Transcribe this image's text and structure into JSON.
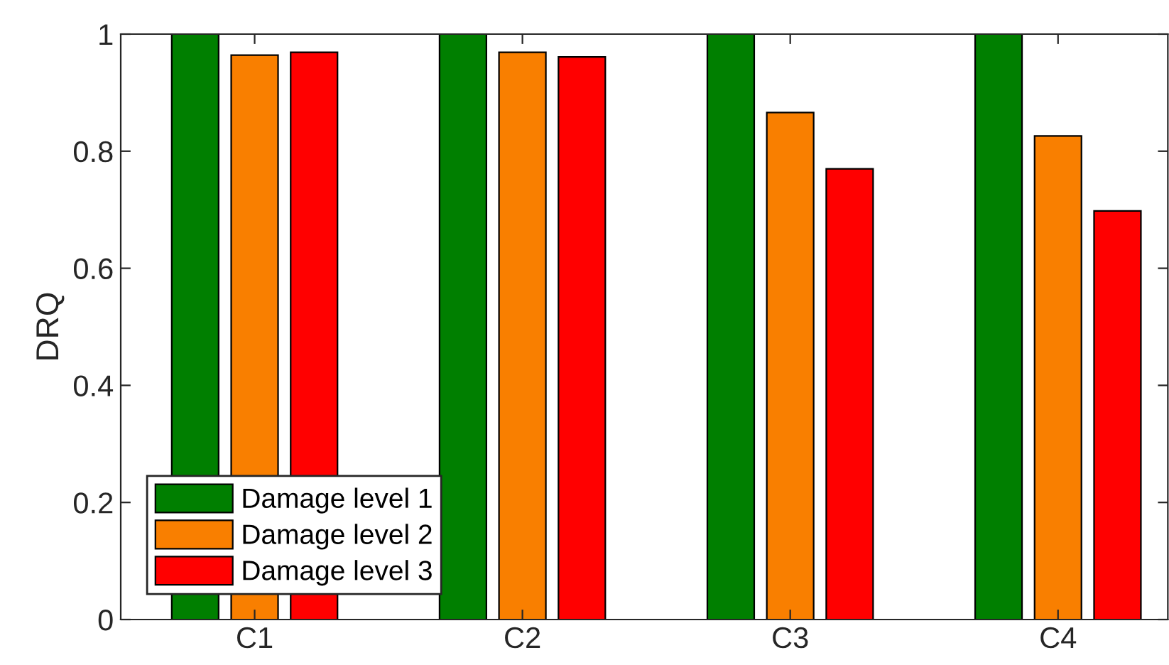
{
  "chart_data": {
    "type": "bar",
    "ylabel": "DRQ",
    "categories": [
      "C1",
      "C2",
      "C3",
      "C4"
    ],
    "series": [
      {
        "name": "Damage level 1",
        "color": "#007f00",
        "values": [
          1,
          1,
          1,
          1
        ]
      },
      {
        "name": "Damage level 2",
        "color": "#f97f00",
        "values": [
          0.964,
          0.969,
          0.866,
          0.826
        ]
      },
      {
        "name": "Damage level 3",
        "color": "#ff0000",
        "values": [
          0.969,
          0.961,
          0.77,
          0.698
        ]
      }
    ],
    "ylim": [
      0,
      1
    ],
    "yticks": [
      0,
      0.2,
      0.4,
      0.6,
      0.8,
      1
    ],
    "grid": false,
    "legend": "bottom left"
  }
}
